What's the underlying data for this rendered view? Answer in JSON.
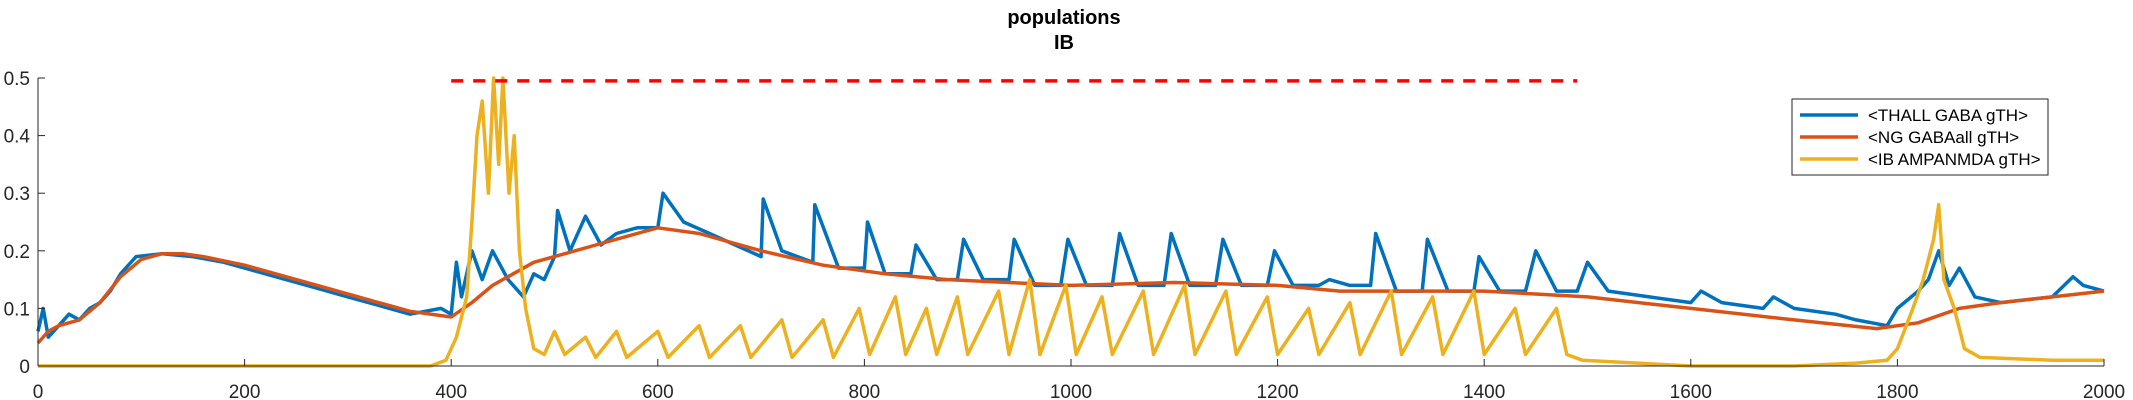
{
  "chart_data": {
    "type": "line",
    "title": [
      "populations",
      "IB"
    ],
    "xlabel": "",
    "ylabel": "",
    "xlim": [
      0,
      2000
    ],
    "ylim": [
      0,
      0.5
    ],
    "x_ticks": [
      0,
      200,
      400,
      600,
      800,
      1000,
      1200,
      1400,
      1600,
      1800,
      2000
    ],
    "y_ticks": [
      0,
      0.1,
      0.2,
      0.3,
      0.4,
      0.5
    ],
    "grid": false,
    "legend_position": "top-right",
    "series": [
      {
        "name": "<THALL GABA gTH>",
        "color": "#0072BD",
        "points": [
          [
            0,
            0.06
          ],
          [
            5,
            0.1
          ],
          [
            10,
            0.05
          ],
          [
            20,
            0.07
          ],
          [
            30,
            0.09
          ],
          [
            40,
            0.08
          ],
          [
            50,
            0.1
          ],
          [
            60,
            0.11
          ],
          [
            70,
            0.13
          ],
          [
            80,
            0.16
          ],
          [
            95,
            0.19
          ],
          [
            120,
            0.195
          ],
          [
            150,
            0.19
          ],
          [
            180,
            0.18
          ],
          [
            210,
            0.165
          ],
          [
            240,
            0.15
          ],
          [
            270,
            0.135
          ],
          [
            300,
            0.12
          ],
          [
            330,
            0.105
          ],
          [
            360,
            0.09
          ],
          [
            390,
            0.1
          ],
          [
            400,
            0.09
          ],
          [
            405,
            0.18
          ],
          [
            410,
            0.12
          ],
          [
            420,
            0.2
          ],
          [
            430,
            0.15
          ],
          [
            440,
            0.2
          ],
          [
            455,
            0.15
          ],
          [
            470,
            0.12
          ],
          [
            480,
            0.16
          ],
          [
            490,
            0.15
          ],
          [
            500,
            0.19
          ],
          [
            503,
            0.27
          ],
          [
            515,
            0.2
          ],
          [
            530,
            0.26
          ],
          [
            545,
            0.21
          ],
          [
            560,
            0.23
          ],
          [
            580,
            0.24
          ],
          [
            600,
            0.24
          ],
          [
            605,
            0.3
          ],
          [
            625,
            0.25
          ],
          [
            650,
            0.23
          ],
          [
            675,
            0.21
          ],
          [
            700,
            0.19
          ],
          [
            702,
            0.29
          ],
          [
            720,
            0.2
          ],
          [
            750,
            0.18
          ],
          [
            752,
            0.28
          ],
          [
            775,
            0.17
          ],
          [
            800,
            0.17
          ],
          [
            803,
            0.25
          ],
          [
            820,
            0.16
          ],
          [
            845,
            0.16
          ],
          [
            850,
            0.21
          ],
          [
            870,
            0.15
          ],
          [
            890,
            0.15
          ],
          [
            896,
            0.22
          ],
          [
            915,
            0.15
          ],
          [
            940,
            0.15
          ],
          [
            945,
            0.22
          ],
          [
            965,
            0.14
          ],
          [
            990,
            0.14
          ],
          [
            997,
            0.22
          ],
          [
            1015,
            0.14
          ],
          [
            1040,
            0.14
          ],
          [
            1047,
            0.23
          ],
          [
            1065,
            0.14
          ],
          [
            1090,
            0.14
          ],
          [
            1097,
            0.23
          ],
          [
            1115,
            0.14
          ],
          [
            1140,
            0.14
          ],
          [
            1147,
            0.22
          ],
          [
            1165,
            0.14
          ],
          [
            1190,
            0.14
          ],
          [
            1197,
            0.2
          ],
          [
            1215,
            0.14
          ],
          [
            1240,
            0.14
          ],
          [
            1250,
            0.15
          ],
          [
            1270,
            0.14
          ],
          [
            1290,
            0.14
          ],
          [
            1295,
            0.23
          ],
          [
            1315,
            0.13
          ],
          [
            1340,
            0.13
          ],
          [
            1345,
            0.22
          ],
          [
            1365,
            0.13
          ],
          [
            1390,
            0.13
          ],
          [
            1395,
            0.19
          ],
          [
            1415,
            0.13
          ],
          [
            1440,
            0.13
          ],
          [
            1450,
            0.2
          ],
          [
            1470,
            0.13
          ],
          [
            1490,
            0.13
          ],
          [
            1500,
            0.18
          ],
          [
            1520,
            0.13
          ],
          [
            1560,
            0.12
          ],
          [
            1600,
            0.11
          ],
          [
            1610,
            0.13
          ],
          [
            1630,
            0.11
          ],
          [
            1670,
            0.1
          ],
          [
            1680,
            0.12
          ],
          [
            1700,
            0.1
          ],
          [
            1740,
            0.09
          ],
          [
            1760,
            0.08
          ],
          [
            1790,
            0.07
          ],
          [
            1800,
            0.1
          ],
          [
            1820,
            0.13
          ],
          [
            1830,
            0.15
          ],
          [
            1840,
            0.2
          ],
          [
            1850,
            0.14
          ],
          [
            1860,
            0.17
          ],
          [
            1875,
            0.12
          ],
          [
            1900,
            0.11
          ],
          [
            1950,
            0.12
          ],
          [
            1970,
            0.155
          ],
          [
            1980,
            0.14
          ],
          [
            2000,
            0.13
          ]
        ]
      },
      {
        "name": "<NG GABAall gTH>",
        "color": "#D95319",
        "points": [
          [
            0,
            0.04
          ],
          [
            10,
            0.06
          ],
          [
            20,
            0.07
          ],
          [
            40,
            0.08
          ],
          [
            60,
            0.11
          ],
          [
            80,
            0.155
          ],
          [
            100,
            0.185
          ],
          [
            120,
            0.195
          ],
          [
            140,
            0.195
          ],
          [
            160,
            0.19
          ],
          [
            200,
            0.175
          ],
          [
            240,
            0.155
          ],
          [
            280,
            0.135
          ],
          [
            320,
            0.115
          ],
          [
            360,
            0.095
          ],
          [
            400,
            0.085
          ],
          [
            420,
            0.11
          ],
          [
            440,
            0.14
          ],
          [
            460,
            0.16
          ],
          [
            480,
            0.18
          ],
          [
            500,
            0.19
          ],
          [
            540,
            0.21
          ],
          [
            580,
            0.23
          ],
          [
            600,
            0.24
          ],
          [
            640,
            0.23
          ],
          [
            700,
            0.2
          ],
          [
            760,
            0.175
          ],
          [
            820,
            0.16
          ],
          [
            880,
            0.15
          ],
          [
            940,
            0.145
          ],
          [
            1000,
            0.14
          ],
          [
            1100,
            0.145
          ],
          [
            1200,
            0.14
          ],
          [
            1260,
            0.13
          ],
          [
            1300,
            0.13
          ],
          [
            1400,
            0.13
          ],
          [
            1500,
            0.12
          ],
          [
            1600,
            0.1
          ],
          [
            1700,
            0.08
          ],
          [
            1780,
            0.065
          ],
          [
            1820,
            0.075
          ],
          [
            1860,
            0.1
          ],
          [
            1900,
            0.11
          ],
          [
            1950,
            0.12
          ],
          [
            2000,
            0.13
          ]
        ]
      },
      {
        "name": "<IB AMPANMDA gTH>",
        "color": "#EDB120",
        "points": [
          [
            0,
            0.0
          ],
          [
            200,
            0.0
          ],
          [
            380,
            0.0
          ],
          [
            395,
            0.01
          ],
          [
            405,
            0.05
          ],
          [
            415,
            0.12
          ],
          [
            420,
            0.25
          ],
          [
            425,
            0.4
          ],
          [
            430,
            0.46
          ],
          [
            436,
            0.3
          ],
          [
            441,
            0.5
          ],
          [
            446,
            0.35
          ],
          [
            450,
            0.5
          ],
          [
            456,
            0.3
          ],
          [
            461,
            0.4
          ],
          [
            466,
            0.2
          ],
          [
            472,
            0.1
          ],
          [
            480,
            0.03
          ],
          [
            490,
            0.02
          ],
          [
            500,
            0.06
          ],
          [
            510,
            0.02
          ],
          [
            530,
            0.05
          ],
          [
            540,
            0.015
          ],
          [
            560,
            0.06
          ],
          [
            570,
            0.015
          ],
          [
            600,
            0.06
          ],
          [
            610,
            0.015
          ],
          [
            640,
            0.07
          ],
          [
            650,
            0.015
          ],
          [
            680,
            0.07
          ],
          [
            690,
            0.015
          ],
          [
            720,
            0.08
          ],
          [
            730,
            0.015
          ],
          [
            760,
            0.08
          ],
          [
            770,
            0.015
          ],
          [
            795,
            0.1
          ],
          [
            805,
            0.02
          ],
          [
            830,
            0.12
          ],
          [
            840,
            0.02
          ],
          [
            860,
            0.1
          ],
          [
            870,
            0.02
          ],
          [
            890,
            0.12
          ],
          [
            900,
            0.02
          ],
          [
            930,
            0.13
          ],
          [
            940,
            0.02
          ],
          [
            960,
            0.15
          ],
          [
            970,
            0.02
          ],
          [
            995,
            0.14
          ],
          [
            1005,
            0.02
          ],
          [
            1030,
            0.12
          ],
          [
            1040,
            0.02
          ],
          [
            1070,
            0.13
          ],
          [
            1080,
            0.02
          ],
          [
            1110,
            0.14
          ],
          [
            1120,
            0.02
          ],
          [
            1150,
            0.13
          ],
          [
            1160,
            0.02
          ],
          [
            1190,
            0.12
          ],
          [
            1200,
            0.02
          ],
          [
            1230,
            0.1
          ],
          [
            1240,
            0.02
          ],
          [
            1270,
            0.11
          ],
          [
            1280,
            0.02
          ],
          [
            1310,
            0.13
          ],
          [
            1320,
            0.02
          ],
          [
            1350,
            0.12
          ],
          [
            1360,
            0.02
          ],
          [
            1390,
            0.13
          ],
          [
            1400,
            0.02
          ],
          [
            1430,
            0.1
          ],
          [
            1440,
            0.02
          ],
          [
            1470,
            0.1
          ],
          [
            1480,
            0.02
          ],
          [
            1495,
            0.01
          ],
          [
            1600,
            0.0
          ],
          [
            1700,
            0.0
          ],
          [
            1760,
            0.005
          ],
          [
            1790,
            0.01
          ],
          [
            1800,
            0.03
          ],
          [
            1815,
            0.1
          ],
          [
            1825,
            0.15
          ],
          [
            1835,
            0.22
          ],
          [
            1840,
            0.28
          ],
          [
            1845,
            0.15
          ],
          [
            1855,
            0.1
          ],
          [
            1865,
            0.03
          ],
          [
            1880,
            0.015
          ],
          [
            1950,
            0.01
          ],
          [
            2000,
            0.01
          ]
        ]
      }
    ],
    "annotations": [
      {
        "type": "dashed-hline",
        "color": "#FF0000",
        "y": 0.495,
        "x_start": 400,
        "x_end": 1490
      }
    ]
  }
}
